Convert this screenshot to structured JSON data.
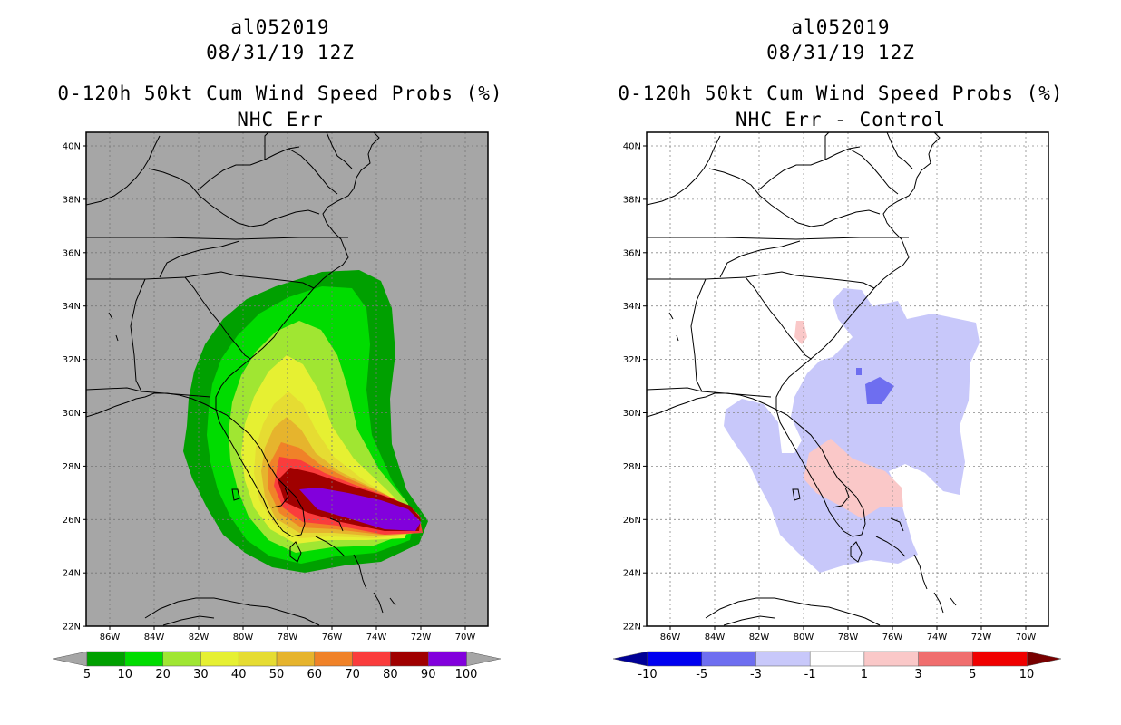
{
  "panels": [
    {
      "storm_id": "al052019",
      "datetime": "08/31/19 12Z",
      "product": "0-120h 50kt Cum Wind Speed Probs (%)",
      "subtitle": "NHC Err",
      "background": "#a6a6a6",
      "lat_labels": [
        "40N",
        "38N",
        "36N",
        "34N",
        "32N",
        "30N",
        "28N",
        "26N",
        "24N",
        "22N"
      ],
      "lon_labels": [
        "86W",
        "84W",
        "82W",
        "80W",
        "78W",
        "76W",
        "74W",
        "72W",
        "70W"
      ],
      "colorbar": {
        "under_color": "#a6a6a6",
        "over_color": "#a6a6a6",
        "colors": [
          "#00a000",
          "#00dc00",
          "#a0e632",
          "#e6f032",
          "#e6dc32",
          "#e6b42d",
          "#f08228",
          "#fa3c3c",
          "#a00000",
          "#8200dc"
        ],
        "labels": [
          "5",
          "10",
          "20",
          "30",
          "40",
          "50",
          "60",
          "70",
          "80",
          "90",
          "100"
        ]
      }
    },
    {
      "storm_id": "al052019",
      "datetime": "08/31/19 12Z",
      "product": "0-120h 50kt Cum Wind Speed Probs (%)",
      "subtitle": "NHC Err - Control",
      "background": "#ffffff",
      "lat_labels": [
        "40N",
        "38N",
        "36N",
        "34N",
        "32N",
        "30N",
        "28N",
        "26N",
        "24N",
        "22N"
      ],
      "lon_labels": [
        "86W",
        "84W",
        "82W",
        "80W",
        "78W",
        "76W",
        "74W",
        "72W",
        "70W"
      ],
      "colorbar": {
        "under_color": "#000096",
        "over_color": "#780000",
        "colors": [
          "#0000f0",
          "#6e6ef0",
          "#c8c8fa",
          "#ffffff",
          "#fac8c8",
          "#f06e6e",
          "#f00000"
        ],
        "labels": [
          "-10",
          "-5",
          "-3",
          "-1",
          "1",
          "3",
          "5",
          "10"
        ]
      }
    }
  ]
}
